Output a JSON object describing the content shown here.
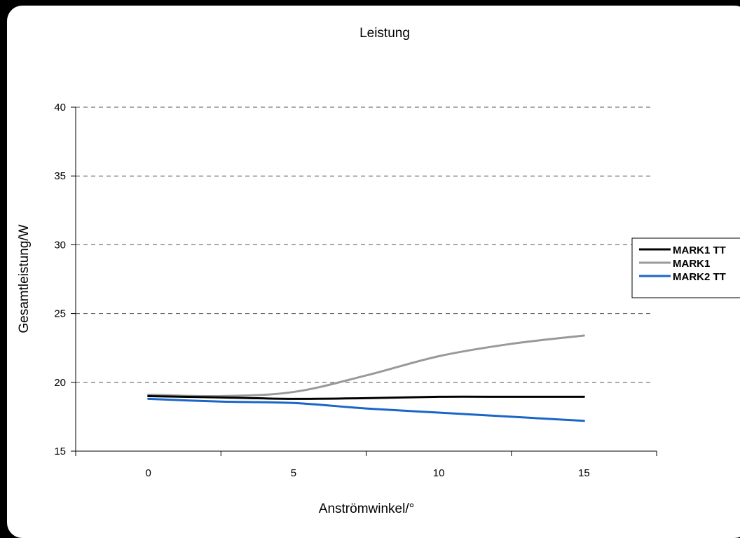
{
  "chart_data": {
    "type": "line",
    "title": "Leistung",
    "xlabel": "Anströmwinkel/°",
    "ylabel": "Gesamtleistung/W",
    "x_ticks": [
      "0",
      "5",
      "10",
      "15"
    ],
    "y_ticks": [
      "15",
      "20",
      "25",
      "30",
      "35",
      "40"
    ],
    "ylim": [
      15,
      40
    ],
    "grid": "horizontal-dashed",
    "legend_position": "right",
    "x": [
      0,
      2.5,
      5,
      7.5,
      10,
      12.5,
      15
    ],
    "series": [
      {
        "name": "MARK1 TT",
        "color": "#000000",
        "values": [
          19.0,
          18.9,
          18.8,
          18.85,
          18.95,
          18.95,
          18.95
        ]
      },
      {
        "name": "MARK1",
        "color": "#999999",
        "values": [
          19.1,
          19.0,
          19.3,
          20.5,
          21.9,
          22.8,
          23.4
        ]
      },
      {
        "name": "MARK2 TT",
        "color": "#1a66c8",
        "values": [
          18.8,
          18.6,
          18.5,
          18.1,
          17.8,
          17.5,
          17.2
        ]
      }
    ]
  }
}
